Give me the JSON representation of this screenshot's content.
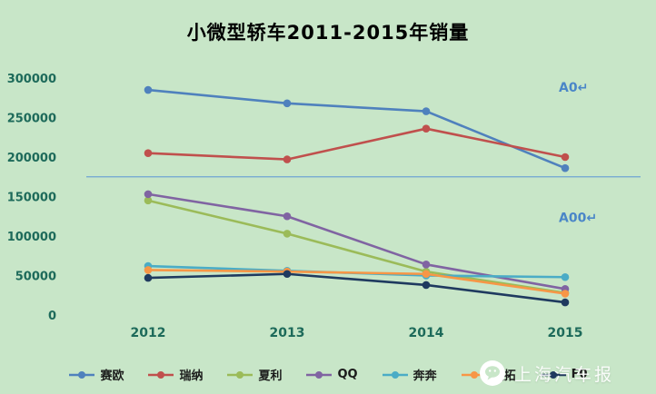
{
  "chart_data": {
    "type": "line",
    "title": "小微型轿车2011-2015年销量",
    "categories": [
      "2012",
      "2013",
      "2014",
      "2015"
    ],
    "series": [
      {
        "name": "赛欧",
        "color": "#4f81bd",
        "values": [
          285000,
          268000,
          258000,
          186000
        ]
      },
      {
        "name": "瑞纳",
        "color": "#c0504d",
        "values": [
          205000,
          197000,
          236000,
          200000
        ]
      },
      {
        "name": "夏利",
        "color": "#9bbb59",
        "values": [
          145000,
          103000,
          55000,
          28000
        ]
      },
      {
        "name": "QQ",
        "color": "#8064a2",
        "values": [
          153000,
          125000,
          64000,
          33000
        ]
      },
      {
        "name": "奔奔",
        "color": "#4bacc6",
        "values": [
          62000,
          56000,
          50000,
          48000
        ]
      },
      {
        "name": "奥拓",
        "color": "#f79646",
        "values": [
          57000,
          55000,
          52000,
          27000
        ]
      },
      {
        "name": "F0",
        "color": "#1f3a5f",
        "values": [
          47000,
          52000,
          38000,
          16000
        ]
      }
    ],
    "ylim": [
      0,
      300000
    ],
    "ytick_step": 50000,
    "ytick_labels": [
      "0",
      "50000",
      "100000",
      "150000",
      "200000",
      "250000",
      "300000"
    ],
    "grid": false,
    "legend_position": "bottom",
    "separator_line": {
      "value": 175000,
      "color": "#6fa3d4"
    },
    "annotations": [
      {
        "text": "A0↵",
        "value": 283000,
        "color": "#4a86c8"
      },
      {
        "text": "A00↵",
        "value": 118000,
        "color": "#4a86c8"
      }
    ]
  },
  "watermark": {
    "text": "上海汽车报"
  },
  "colors": {
    "background": "#c8e6c8",
    "axis_text": "#1d6a5a",
    "title": "#000000"
  }
}
